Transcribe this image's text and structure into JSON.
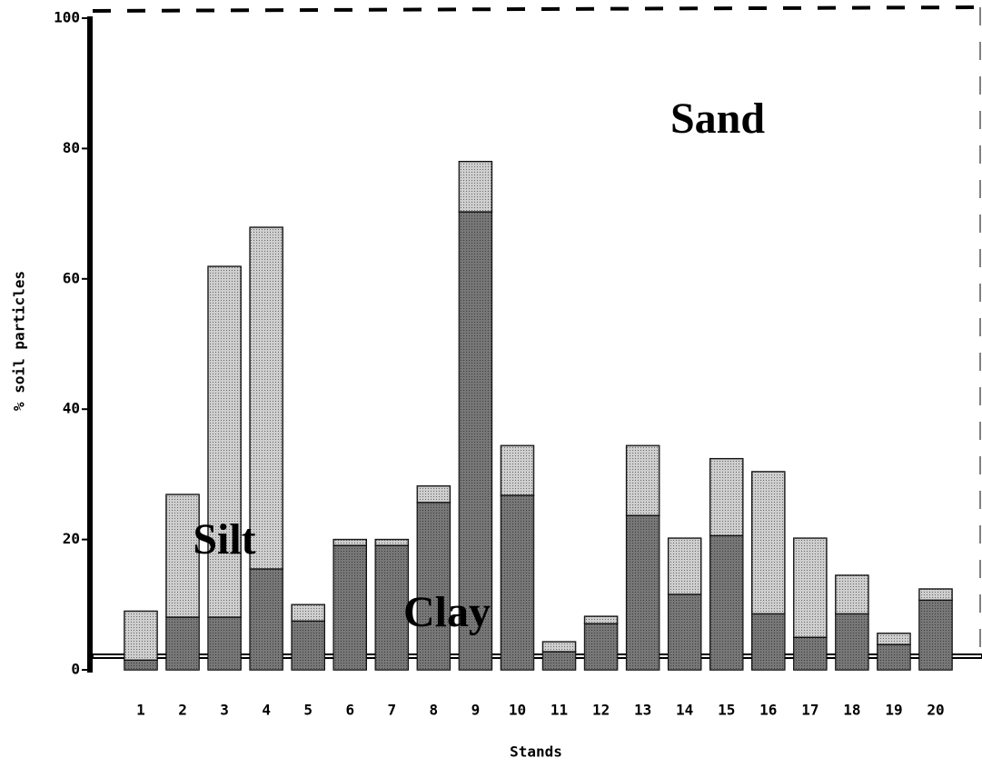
{
  "chart_data": {
    "type": "stacked_bar",
    "x_label": "Stands",
    "y_label": "% soil particles",
    "annotations": [
      "Sand"
    ],
    "categories": [
      "1",
      "2",
      "3",
      "4",
      "5",
      "6",
      "7",
      "8",
      "9",
      "10",
      "11",
      "12",
      "13",
      "14",
      "15",
      "16",
      "17",
      "18",
      "19",
      "20"
    ],
    "series": [
      {
        "name": "Clay",
        "color": "#4a4a4a",
        "values": [
          1.5,
          8.1,
          8.1,
          15.5,
          7.5,
          19.1,
          19.1,
          25.7,
          70.3,
          26.8,
          2.8,
          7.1,
          23.7,
          11.6,
          20.6,
          8.6,
          5.0,
          8.6,
          3.9,
          10.7
        ]
      },
      {
        "name": "Silt",
        "color": "#bdbdbd",
        "values": [
          7.5,
          18.8,
          53.8,
          52.4,
          2.5,
          0.9,
          0.9,
          2.5,
          7.7,
          7.6,
          1.5,
          1.1,
          10.7,
          8.6,
          11.8,
          21.8,
          15.2,
          5.9,
          1.7,
          1.7
        ]
      }
    ],
    "ylim": [
      0,
      100
    ],
    "yticks": [
      0,
      20,
      40,
      60,
      80,
      100
    ]
  }
}
